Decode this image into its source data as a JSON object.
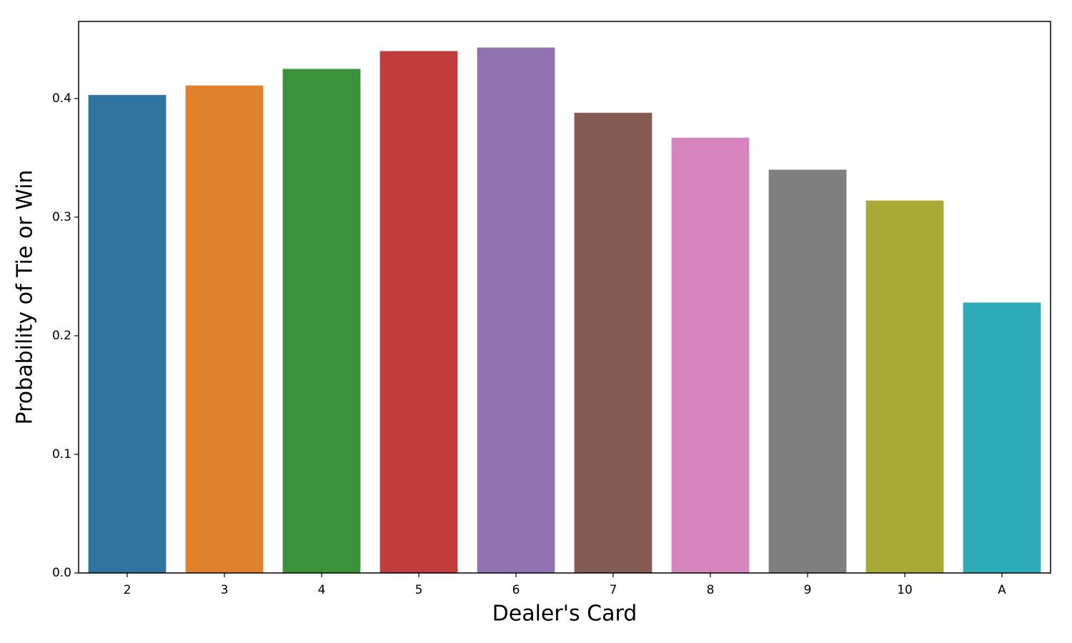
{
  "chart_data": {
    "type": "bar",
    "x_label": "Dealer's Card",
    "y_label": "Probability of Tie or Win",
    "categories": [
      "2",
      "3",
      "4",
      "5",
      "6",
      "7",
      "8",
      "9",
      "10",
      "A"
    ],
    "values": [
      0.403,
      0.411,
      0.425,
      0.44,
      0.443,
      0.388,
      0.367,
      0.34,
      0.314,
      0.228
    ],
    "colors": [
      "#3274a1",
      "#e1812c",
      "#3a923a",
      "#c03d3e",
      "#9372b2",
      "#845b53",
      "#d684bd",
      "#7f7f7f",
      "#a9aa35",
      "#2eabb8"
    ],
    "ylim": [
      0,
      0.465
    ],
    "yticks": [
      {
        "value": 0,
        "label": "0.0"
      },
      0.1,
      0.2,
      0.3,
      0.4
    ],
    "grid": false
  }
}
